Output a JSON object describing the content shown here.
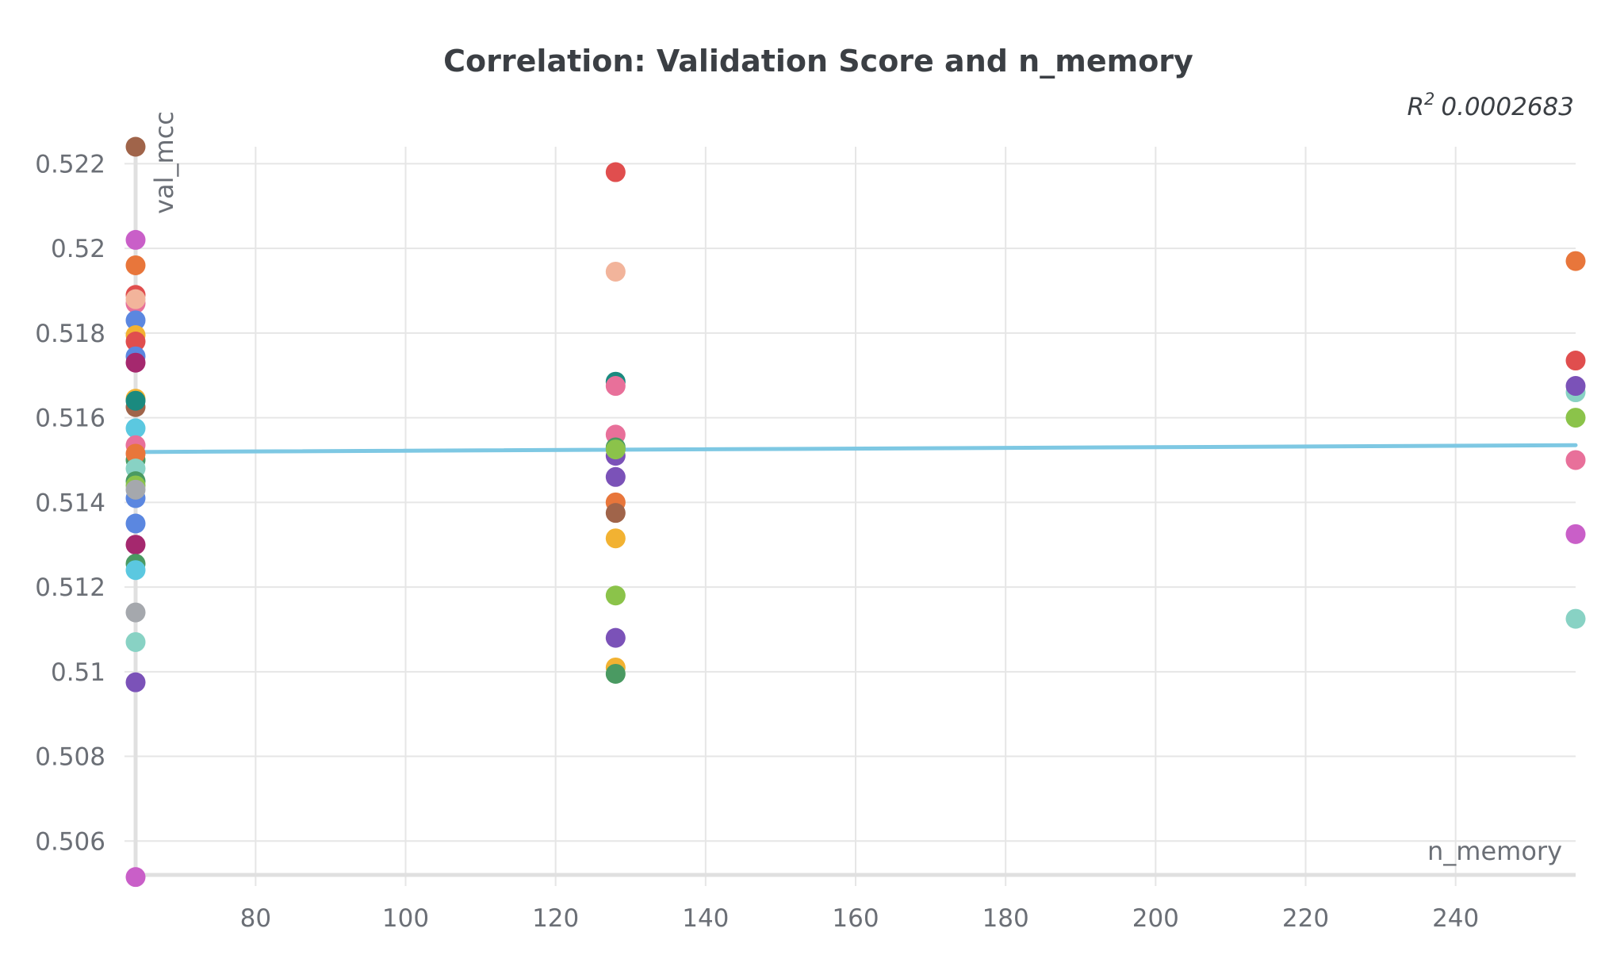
{
  "chart_data": {
    "type": "scatter",
    "title": "Correlation: Validation Score and n_memory",
    "annotation": {
      "symbol": "R",
      "superscript": "2",
      "value": "0.0002683"
    },
    "xlabel": "n_memory",
    "ylabel": "val_mcc",
    "xlim": [
      64,
      256
    ],
    "ylim": [
      0.5052,
      0.5224
    ],
    "x_ticks": [
      {
        "value": 80,
        "label": "80"
      },
      {
        "value": 100,
        "label": "100"
      },
      {
        "value": 120,
        "label": "120"
      },
      {
        "value": 140,
        "label": "140"
      },
      {
        "value": 160,
        "label": "160"
      },
      {
        "value": 180,
        "label": "180"
      },
      {
        "value": 200,
        "label": "200"
      },
      {
        "value": 220,
        "label": "220"
      },
      {
        "value": 240,
        "label": "240"
      }
    ],
    "y_ticks": [
      {
        "value": 0.506,
        "label": "0.506"
      },
      {
        "value": 0.508,
        "label": "0.508"
      },
      {
        "value": 0.51,
        "label": "0.51"
      },
      {
        "value": 0.512,
        "label": "0.512"
      },
      {
        "value": 0.514,
        "label": "0.514"
      },
      {
        "value": 0.516,
        "label": "0.516"
      },
      {
        "value": 0.518,
        "label": "0.518"
      },
      {
        "value": 0.52,
        "label": "0.52"
      },
      {
        "value": 0.522,
        "label": "0.522"
      }
    ],
    "grid": true,
    "trendline": {
      "x": [
        64,
        256
      ],
      "y": [
        0.51519,
        0.51535
      ],
      "color": "#7ec8e3"
    },
    "points": [
      {
        "x": 64,
        "y": 0.5224,
        "color": "#a0644a"
      },
      {
        "x": 64,
        "y": 0.5202,
        "color": "#c95fc8"
      },
      {
        "x": 64,
        "y": 0.5196,
        "color": "#e8763b"
      },
      {
        "x": 64,
        "y": 0.5189,
        "color": "#e04e4e"
      },
      {
        "x": 64,
        "y": 0.5187,
        "color": "#e8709a"
      },
      {
        "x": 64,
        "y": 0.5188,
        "color": "#f2b49b"
      },
      {
        "x": 64,
        "y": 0.5183,
        "color": "#5b87e0"
      },
      {
        "x": 64,
        "y": 0.51795,
        "color": "#f2b232"
      },
      {
        "x": 64,
        "y": 0.5178,
        "color": "#e04e4e"
      },
      {
        "x": 64,
        "y": 0.51745,
        "color": "#5b87e0"
      },
      {
        "x": 64,
        "y": 0.5173,
        "color": "#a5286e"
      },
      {
        "x": 64,
        "y": 0.51645,
        "color": "#f2b232"
      },
      {
        "x": 64,
        "y": 0.51625,
        "color": "#a0644a"
      },
      {
        "x": 64,
        "y": 0.5164,
        "color": "#1a8a7f"
      },
      {
        "x": 64,
        "y": 0.51575,
        "color": "#5bc8e0"
      },
      {
        "x": 64,
        "y": 0.51535,
        "color": "#e8709a"
      },
      {
        "x": 64,
        "y": 0.515,
        "color": "#4a9a62"
      },
      {
        "x": 64,
        "y": 0.51515,
        "color": "#e8763b"
      },
      {
        "x": 64,
        "y": 0.5148,
        "color": "#88d2c4"
      },
      {
        "x": 64,
        "y": 0.5145,
        "color": "#4a9a62"
      },
      {
        "x": 64,
        "y": 0.5144,
        "color": "#8bc34a"
      },
      {
        "x": 64,
        "y": 0.5141,
        "color": "#5b87e0"
      },
      {
        "x": 64,
        "y": 0.5143,
        "color": "#a5a8ad"
      },
      {
        "x": 64,
        "y": 0.5135,
        "color": "#5b87e0"
      },
      {
        "x": 64,
        "y": 0.513,
        "color": "#a5286e"
      },
      {
        "x": 64,
        "y": 0.51255,
        "color": "#4a9a62"
      },
      {
        "x": 64,
        "y": 0.5124,
        "color": "#5bc8e0"
      },
      {
        "x": 64,
        "y": 0.5114,
        "color": "#a5a8ad"
      },
      {
        "x": 64,
        "y": 0.5107,
        "color": "#88d2c4"
      },
      {
        "x": 64,
        "y": 0.50975,
        "color": "#7b52b8"
      },
      {
        "x": 64,
        "y": 0.50515,
        "color": "#c95fc8"
      },
      {
        "x": 128,
        "y": 0.5218,
        "color": "#e04e4e"
      },
      {
        "x": 128,
        "y": 0.51945,
        "color": "#f2b49b"
      },
      {
        "x": 128,
        "y": 0.51685,
        "color": "#1a8a7f"
      },
      {
        "x": 128,
        "y": 0.51675,
        "color": "#e8709a"
      },
      {
        "x": 128,
        "y": 0.5156,
        "color": "#e8709a"
      },
      {
        "x": 128,
        "y": 0.5153,
        "color": "#4a9a62"
      },
      {
        "x": 128,
        "y": 0.5151,
        "color": "#7b52b8"
      },
      {
        "x": 128,
        "y": 0.51525,
        "color": "#8bc34a"
      },
      {
        "x": 128,
        "y": 0.5146,
        "color": "#7b52b8"
      },
      {
        "x": 128,
        "y": 0.514,
        "color": "#e8763b"
      },
      {
        "x": 128,
        "y": 0.51375,
        "color": "#a0644a"
      },
      {
        "x": 128,
        "y": 0.51315,
        "color": "#f2b232"
      },
      {
        "x": 128,
        "y": 0.5118,
        "color": "#8bc34a"
      },
      {
        "x": 128,
        "y": 0.5108,
        "color": "#7b52b8"
      },
      {
        "x": 128,
        "y": 0.5101,
        "color": "#f2b232"
      },
      {
        "x": 128,
        "y": 0.50995,
        "color": "#4a9a62"
      },
      {
        "x": 256,
        "y": 0.5197,
        "color": "#e8763b"
      },
      {
        "x": 256,
        "y": 0.51735,
        "color": "#e04e4e"
      },
      {
        "x": 256,
        "y": 0.5166,
        "color": "#88d2c4"
      },
      {
        "x": 256,
        "y": 0.51675,
        "color": "#7b52b8"
      },
      {
        "x": 256,
        "y": 0.516,
        "color": "#8bc34a"
      },
      {
        "x": 256,
        "y": 0.515,
        "color": "#e8709a"
      },
      {
        "x": 256,
        "y": 0.51325,
        "color": "#c95fc8"
      },
      {
        "x": 256,
        "y": 0.51125,
        "color": "#88d2c4"
      }
    ]
  }
}
